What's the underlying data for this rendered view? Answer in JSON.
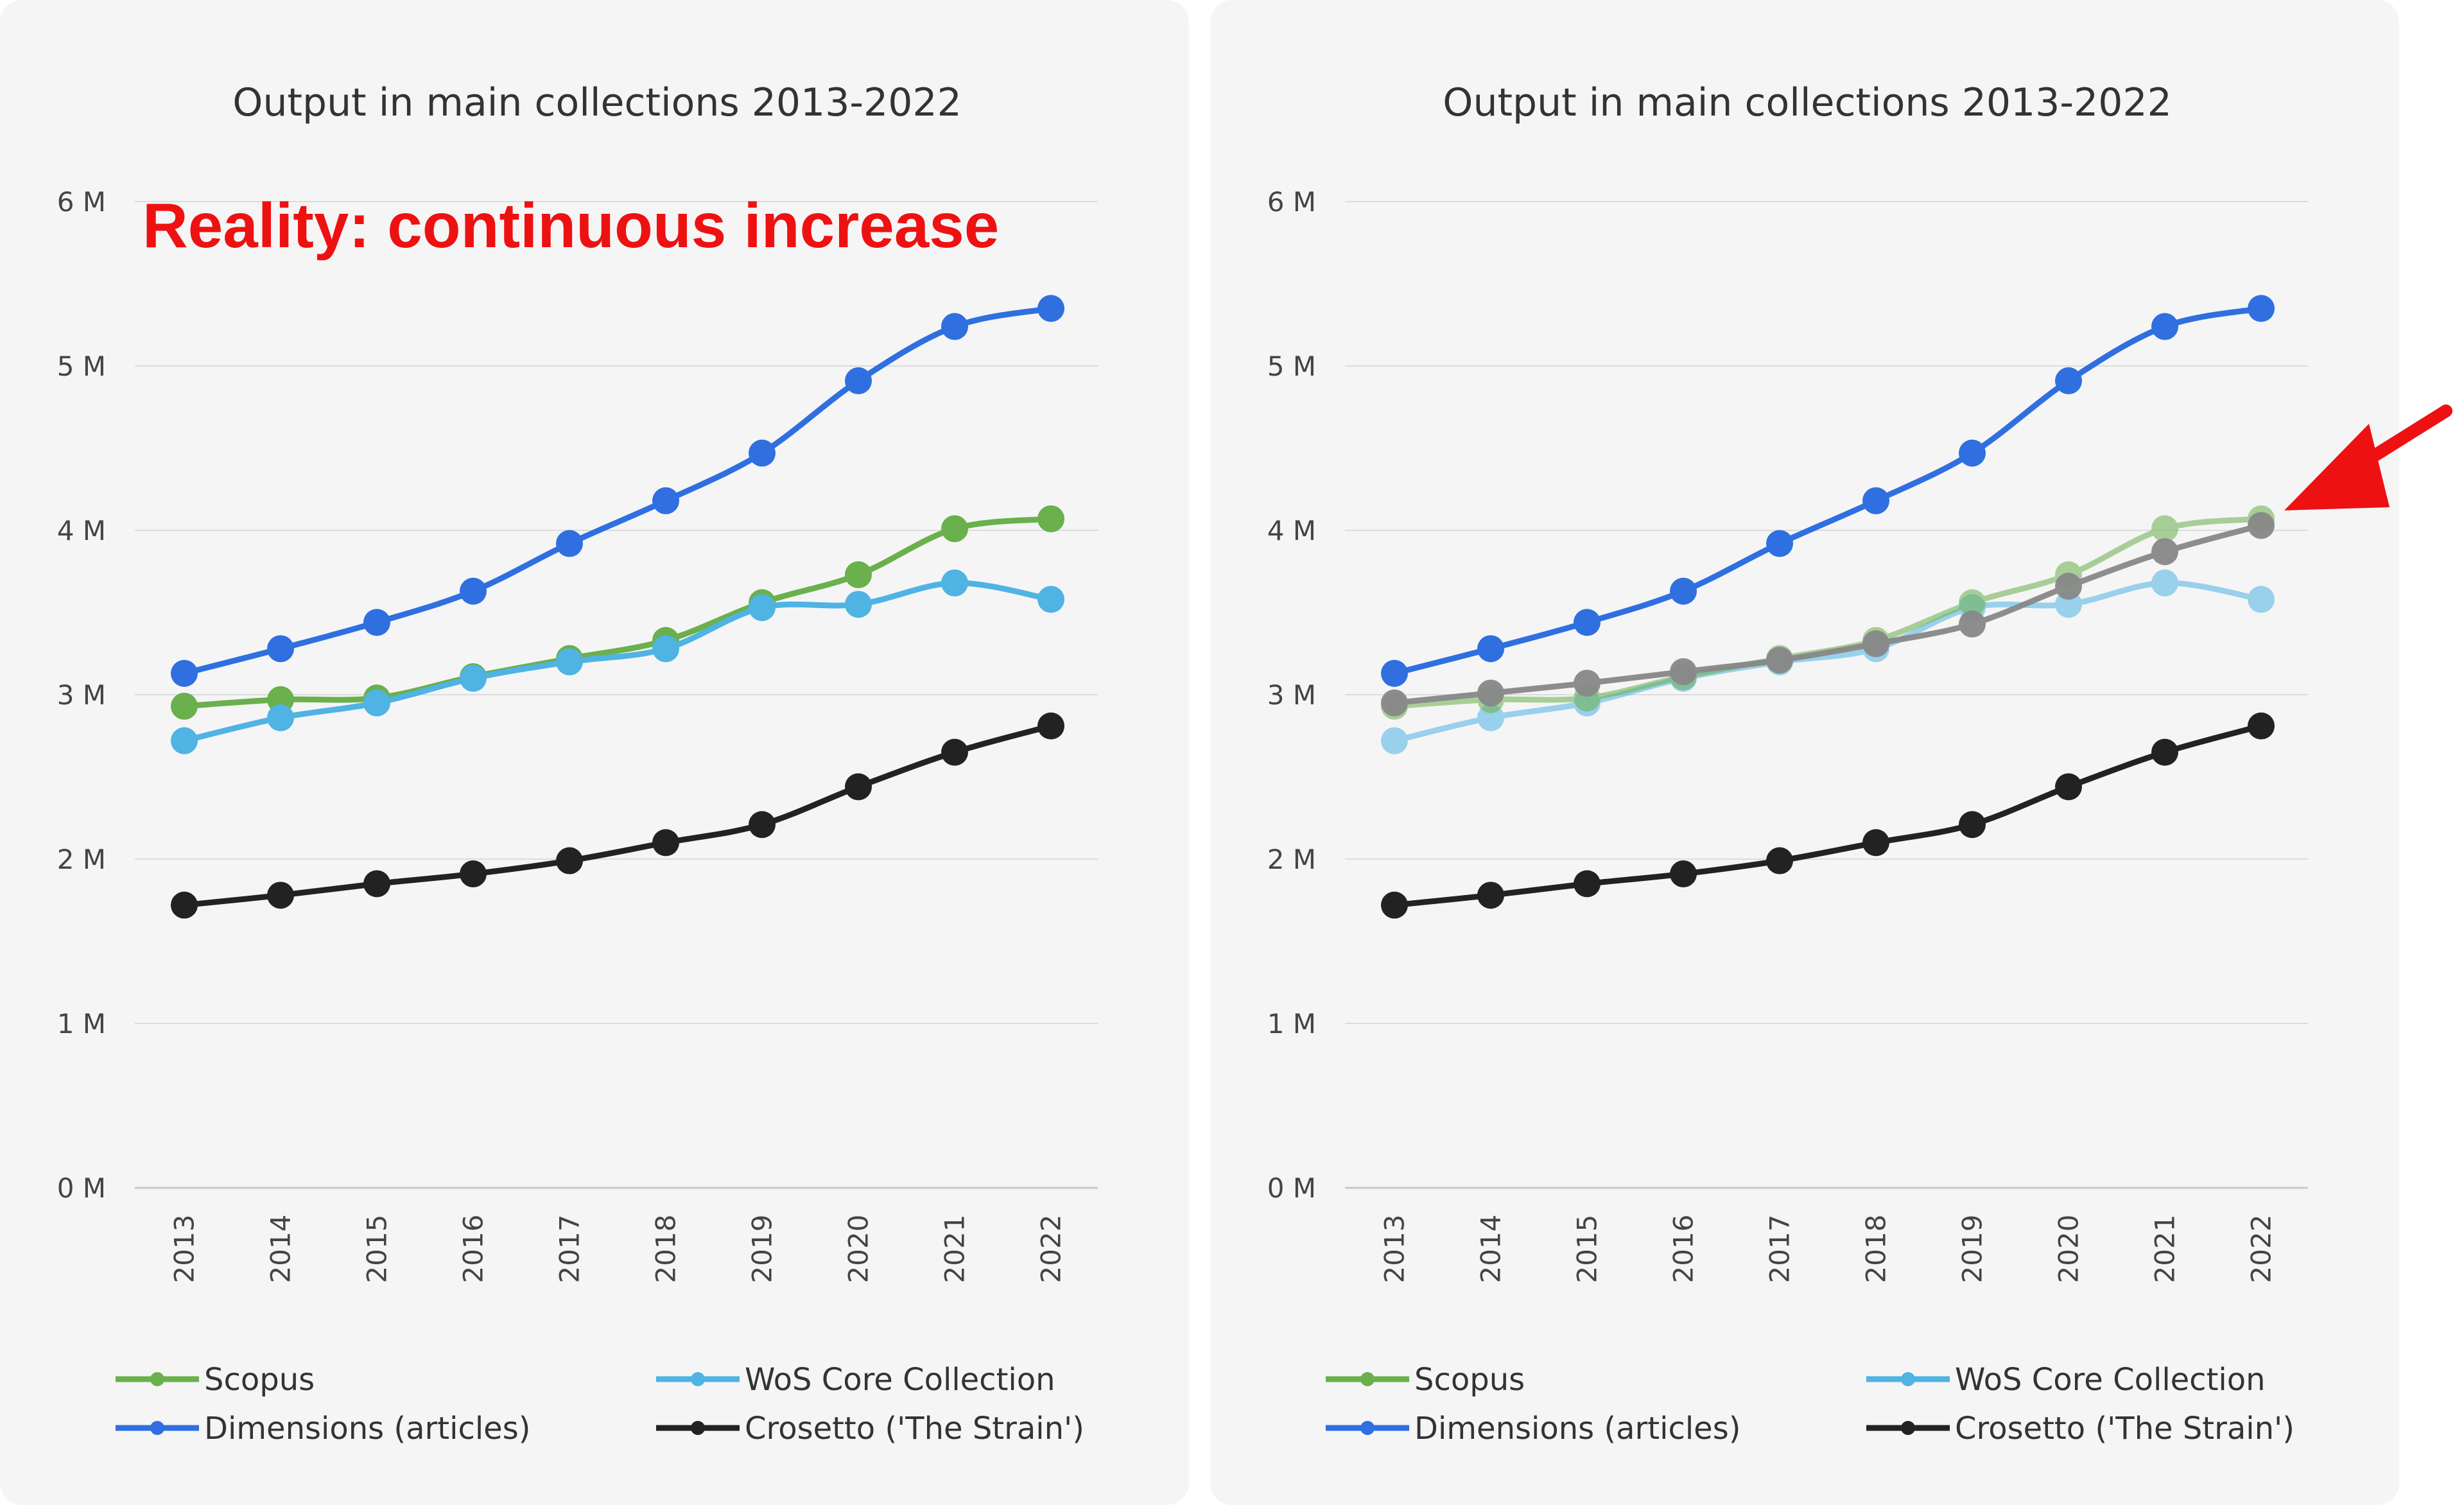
{
  "chart_data": [
    {
      "type": "line",
      "title": "Output in main collections 2013-2022",
      "xlabel": "",
      "ylabel": "",
      "x": [
        "2013",
        "2014",
        "2015",
        "2016",
        "2017",
        "2018",
        "2019",
        "2020",
        "2021",
        "2022"
      ],
      "y_ticks": [
        "0 M",
        "1 M",
        "2 M",
        "3 M",
        "4 M",
        "5 M",
        "6 M"
      ],
      "ylim": [
        0,
        6
      ],
      "grid": true,
      "legend_position": "bottom",
      "annotation": "Reality: continuous increase",
      "series": [
        {
          "name": "Scopus",
          "color": "#6ab04c",
          "values": [
            2.93,
            2.97,
            2.98,
            3.11,
            3.22,
            3.33,
            3.56,
            3.73,
            4.01,
            4.07
          ]
        },
        {
          "name": "WoS Core Collection",
          "color": "#4fb3e3",
          "values": [
            2.72,
            2.86,
            2.95,
            3.1,
            3.2,
            3.28,
            3.53,
            3.55,
            3.68,
            3.58
          ]
        },
        {
          "name": "Dimensions (articles)",
          "color": "#2f6fe0",
          "values": [
            3.13,
            3.28,
            3.44,
            3.63,
            3.92,
            4.18,
            4.47,
            4.91,
            5.24,
            5.35
          ]
        },
        {
          "name": "Crosetto ('The Strain')",
          "color": "#222222",
          "values": [
            1.72,
            1.78,
            1.85,
            1.91,
            1.99,
            2.1,
            2.21,
            2.44,
            2.65,
            2.81
          ]
        }
      ]
    },
    {
      "type": "line",
      "title": "Output in main collections 2013-2022",
      "xlabel": "",
      "ylabel": "",
      "x": [
        "2013",
        "2014",
        "2015",
        "2016",
        "2017",
        "2018",
        "2019",
        "2020",
        "2021",
        "2022"
      ],
      "y_ticks": [
        "0 M",
        "1 M",
        "2 M",
        "3 M",
        "4 M",
        "5 M",
        "6 M"
      ],
      "ylim": [
        0,
        6
      ],
      "grid": true,
      "legend_position": "bottom",
      "annotation_arrow": "red arrow pointing at 2022 end of Scopus and grey line",
      "series": [
        {
          "name": "Scopus",
          "color": "#6ab04c",
          "values": [
            2.93,
            2.97,
            2.98,
            3.11,
            3.22,
            3.33,
            3.56,
            3.73,
            4.01,
            4.07
          ]
        },
        {
          "name": "WoS Core Collection",
          "color": "#4fb3e3",
          "values": [
            2.72,
            2.86,
            2.95,
            3.1,
            3.2,
            3.28,
            3.53,
            3.55,
            3.68,
            3.58
          ]
        },
        {
          "name": "Dimensions (articles)",
          "color": "#2f6fe0",
          "values": [
            3.13,
            3.28,
            3.44,
            3.63,
            3.92,
            4.18,
            4.47,
            4.91,
            5.24,
            5.35
          ]
        },
        {
          "name": "Crosetto ('The Strain')",
          "color": "#222222",
          "values": [
            1.72,
            1.78,
            1.85,
            1.91,
            1.99,
            2.1,
            2.21,
            2.44,
            2.65,
            2.81
          ]
        },
        {
          "color": "#888888",
          "values": [
            2.95,
            3.01,
            3.07,
            3.14,
            3.21,
            3.31,
            3.43,
            3.66,
            3.87,
            4.03
          ]
        }
      ]
    }
  ]
}
